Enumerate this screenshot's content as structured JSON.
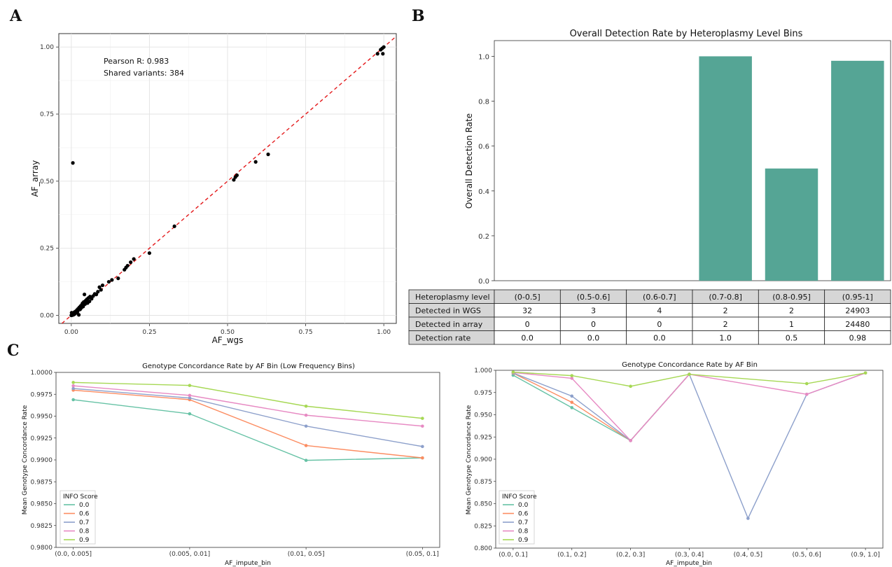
{
  "chart_data": [
    {
      "panel": "A",
      "type": "scatter",
      "xlabel": "AF_wgs",
      "ylabel": "AF_array",
      "xlim": [
        -0.04,
        1.04
      ],
      "ylim": [
        -0.03,
        1.05
      ],
      "xticks": [
        0.0,
        0.25,
        0.5,
        0.75,
        1.0
      ],
      "xtick_labels": [
        "0.00",
        "0.25",
        "0.50",
        "0.75",
        "1.00"
      ],
      "yticks": [
        0.0,
        0.25,
        0.5,
        0.75,
        1.0
      ],
      "ytick_labels": [
        "0.00",
        "0.25",
        "0.50",
        "0.75",
        "1.00"
      ],
      "grid": true,
      "annotations": [
        "Pearson R:  0.983",
        "Shared variants:  384"
      ],
      "reference_line": {
        "type": "identity",
        "style": "dashed",
        "color": "#e41a1c"
      },
      "point_color": "#000000",
      "points": [
        [
          0.0,
          0.0
        ],
        [
          0.002,
          0.004
        ],
        [
          0.004,
          0.001
        ],
        [
          0.006,
          0.008
        ],
        [
          0.008,
          0.003
        ],
        [
          0.01,
          0.012
        ],
        [
          0.012,
          0.006
        ],
        [
          0.014,
          0.015
        ],
        [
          0.016,
          0.01
        ],
        [
          0.018,
          0.02
        ],
        [
          0.02,
          0.014
        ],
        [
          0.022,
          0.025
        ],
        [
          0.024,
          0.002
        ],
        [
          0.026,
          0.03
        ],
        [
          0.028,
          0.022
        ],
        [
          0.03,
          0.035
        ],
        [
          0.032,
          0.028
        ],
        [
          0.034,
          0.04
        ],
        [
          0.036,
          0.045
        ],
        [
          0.038,
          0.033
        ],
        [
          0.04,
          0.05
        ],
        [
          0.042,
          0.078
        ],
        [
          0.044,
          0.042
        ],
        [
          0.046,
          0.055
        ],
        [
          0.048,
          0.05
        ],
        [
          0.05,
          0.06
        ],
        [
          0.052,
          0.046
        ],
        [
          0.055,
          0.065
        ],
        [
          0.058,
          0.052
        ],
        [
          0.06,
          0.07
        ],
        [
          0.065,
          0.062
        ],
        [
          0.07,
          0.072
        ],
        [
          0.075,
          0.08
        ],
        [
          0.08,
          0.078
        ],
        [
          0.085,
          0.088
        ],
        [
          0.09,
          0.105
        ],
        [
          0.095,
          0.095
        ],
        [
          0.1,
          0.112
        ],
        [
          0.12,
          0.125
        ],
        [
          0.13,
          0.132
        ],
        [
          0.15,
          0.138
        ],
        [
          0.17,
          0.17
        ],
        [
          0.175,
          0.178
        ],
        [
          0.18,
          0.185
        ],
        [
          0.19,
          0.198
        ],
        [
          0.2,
          0.21
        ],
        [
          0.25,
          0.232
        ],
        [
          0.33,
          0.332
        ],
        [
          0.005,
          0.568
        ],
        [
          0.52,
          0.505
        ],
        [
          0.525,
          0.515
        ],
        [
          0.53,
          0.522
        ],
        [
          0.59,
          0.572
        ],
        [
          0.63,
          0.6
        ],
        [
          0.98,
          0.975
        ],
        [
          0.99,
          0.99
        ],
        [
          0.995,
          0.995
        ],
        [
          1.0,
          1.0
        ],
        [
          0.997,
          0.975
        ],
        [
          0.001,
          0.01
        ]
      ]
    },
    {
      "panel": "B",
      "type": "bar",
      "title": "Overall Detection Rate by Heteroplasmy Level Bins",
      "xlabel": "",
      "ylabel": "Overall Detection Rate",
      "ylim": [
        0,
        1.07
      ],
      "yticks": [
        0.0,
        0.2,
        0.4,
        0.6,
        0.8,
        1.0
      ],
      "ytick_labels": [
        "0.0",
        "0.2",
        "0.4",
        "0.6",
        "0.8",
        "1.0"
      ],
      "bar_color": "#55a595",
      "categories": [
        "(0-0.5]",
        "(0.5-0.6]",
        "(0.6-0.7]",
        "(0.7-0.8]",
        "(0.8-0.95]",
        "(0.95-1]"
      ],
      "values": [
        0.0,
        0.0,
        0.0,
        1.0,
        0.5,
        0.98
      ],
      "table": {
        "header_label": "Heteroplasmy level",
        "rows": [
          {
            "label": "Detected in WGS",
            "cells": [
              "32",
              "3",
              "4",
              "2",
              "2",
              "24903"
            ]
          },
          {
            "label": "Detected in array",
            "cells": [
              "0",
              "0",
              "0",
              "2",
              "1",
              "24480"
            ]
          },
          {
            "label": "Detection rate",
            "cells": [
              "0.0",
              "0.0",
              "0.0",
              "1.0",
              "0.5",
              "0.98"
            ]
          }
        ]
      }
    },
    {
      "panel": "C",
      "type": "line",
      "title": "Genotype Concordance Rate by AF Bin (Low Frequency Bins)",
      "xlabel": "AF_impute_bin",
      "ylabel": "Mean Genotype Concordance Rate",
      "ylim": [
        0.98,
        1.0
      ],
      "yticks": [
        0.98,
        0.9825,
        0.985,
        0.9875,
        0.99,
        0.9925,
        0.995,
        0.9975,
        1.0
      ],
      "ytick_labels": [
        "0.9800",
        "0.9825",
        "0.9850",
        "0.9875",
        "0.9900",
        "0.9925",
        "0.9950",
        "0.9975",
        "1.0000"
      ],
      "categories": [
        "(0.0, 0.005]",
        "(0.005, 0.01]",
        "(0.01, 0.05]",
        "(0.05, 0.1]"
      ],
      "legend_title": "INFO Score",
      "legend_position": "lower-left",
      "series": [
        {
          "name": "0.0",
          "color": "#66c2a5",
          "values": [
            0.99688,
            0.99527,
            0.98995,
            0.99023
          ]
        },
        {
          "name": "0.6",
          "color": "#fc8d62",
          "values": [
            0.99797,
            0.99688,
            0.99164,
            0.99023
          ]
        },
        {
          "name": "0.7",
          "color": "#8da0cb",
          "values": [
            0.99816,
            0.99707,
            0.99386,
            0.99153
          ]
        },
        {
          "name": "0.8",
          "color": "#e78ac3",
          "values": [
            0.99847,
            0.99737,
            0.99511,
            0.99386
          ]
        },
        {
          "name": "0.9",
          "color": "#a6d854",
          "values": [
            0.99885,
            0.99851,
            0.99614,
            0.99475
          ]
        }
      ]
    },
    {
      "panel": "C2",
      "type": "line",
      "title": "Genotype Concordance Rate by AF Bin",
      "xlabel": "AF_impute_bin",
      "ylabel": "Mean Genotype Concordance Rate",
      "ylim": [
        0.8,
        1.0
      ],
      "yticks": [
        0.8,
        0.825,
        0.85,
        0.875,
        0.9,
        0.925,
        0.95,
        0.975,
        1.0
      ],
      "ytick_labels": [
        "0.800",
        "0.825",
        "0.850",
        "0.875",
        "0.900",
        "0.925",
        "0.950",
        "0.975",
        "1.000"
      ],
      "categories": [
        "(0.0, 0.1]",
        "(0.1, 0.2]",
        "(0.2, 0.3]",
        "(0.3, 0.4]",
        "(0.4, 0.5]",
        "(0.5, 0.6]",
        "(0.9, 1.0]"
      ],
      "legend_title": "INFO Score",
      "legend_position": "lower-left",
      "series": [
        {
          "name": "0.0",
          "color": "#66c2a5",
          "values": [
            0.9945,
            0.958,
            0.921,
            0.9955,
            null,
            null,
            null
          ]
        },
        {
          "name": "0.6",
          "color": "#fc8d62",
          "values": [
            0.9968,
            0.964,
            0.921,
            0.9955,
            null,
            null,
            null
          ]
        },
        {
          "name": "0.7",
          "color": "#8da0cb",
          "values": [
            0.997,
            0.971,
            0.921,
            0.9955,
            0.8335,
            0.973,
            0.997
          ]
        },
        {
          "name": "0.8",
          "color": "#e78ac3",
          "values": [
            0.9975,
            0.991,
            0.921,
            0.9955,
            null,
            0.973,
            0.997
          ]
        },
        {
          "name": "0.9",
          "color": "#a6d854",
          "values": [
            0.998,
            0.994,
            0.982,
            0.9955,
            null,
            0.985,
            0.997
          ]
        }
      ]
    }
  ],
  "panel_labels": [
    "A",
    "B",
    "C"
  ]
}
